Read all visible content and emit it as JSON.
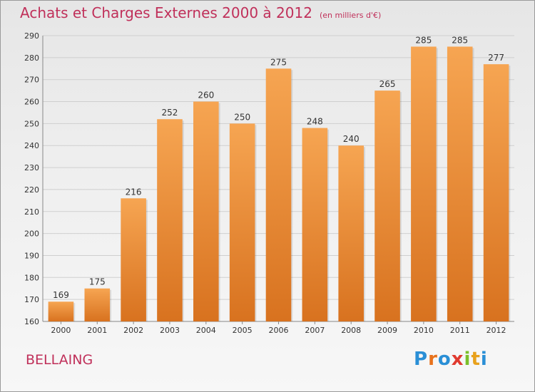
{
  "header": {
    "title": "Achats et Charges Externes 2000 à 2012",
    "unit": "(en milliers d'€)"
  },
  "footer": {
    "commune": "BELLAING",
    "logo_letters": [
      "P",
      "r",
      "o",
      "x",
      "i",
      "t",
      "i"
    ],
    "logo_colors": [
      "#2a8fd6",
      "#e8721c",
      "#2a8fd6",
      "#e03a2f",
      "#7bbf2a",
      "#e8a11c",
      "#2a8fd6"
    ]
  },
  "colors": {
    "bar_top": "#f6a552",
    "bar_bottom": "#d8721f",
    "grid": "#cfcfcf",
    "text": "#333333"
  },
  "chart_data": {
    "type": "bar",
    "title": "Achats et Charges Externes 2000 à 2012",
    "subtitle": "(en milliers d'€)",
    "categories": [
      "2000",
      "2001",
      "2002",
      "2003",
      "2004",
      "2005",
      "2006",
      "2007",
      "2008",
      "2009",
      "2010",
      "2011",
      "2012"
    ],
    "values": [
      169,
      175,
      216,
      252,
      260,
      250,
      275,
      248,
      240,
      265,
      285,
      285,
      277
    ],
    "ylim": [
      160,
      290
    ],
    "yticks": [
      160,
      170,
      180,
      190,
      200,
      210,
      220,
      230,
      240,
      250,
      260,
      270,
      280,
      290
    ],
    "grid": true,
    "xlabel": "",
    "ylabel": ""
  }
}
